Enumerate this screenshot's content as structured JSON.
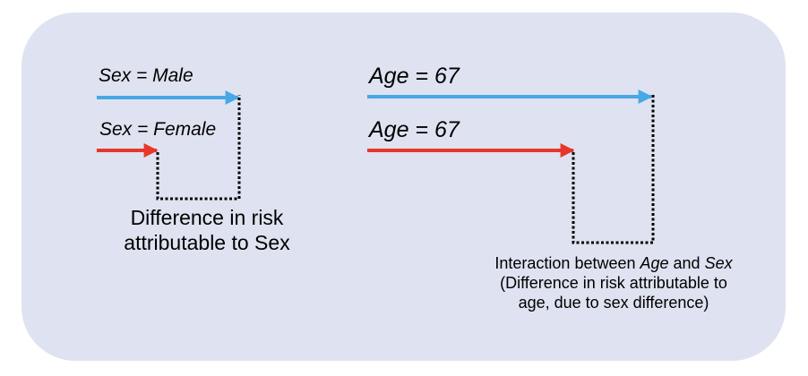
{
  "left_panel": {
    "male_label": "Sex = Male",
    "female_label": "Sex = Female",
    "caption_line1": "Difference in risk",
    "caption_line2": "attributable to Sex"
  },
  "right_panel": {
    "top_label": "Age = 67",
    "bottom_label": "Age = 67",
    "caption": {
      "prefix": "Interaction between ",
      "term1": "Age",
      "and": " and ",
      "term2": "Sex",
      "line2": "(Difference in risk attributable to",
      "line3": "age, due to sex difference)"
    }
  },
  "colors": {
    "blue_arrow": "#46a8e6",
    "red_arrow": "#e6372b",
    "panel_background": "#dfe2f0",
    "dotted_line": "#000000"
  }
}
